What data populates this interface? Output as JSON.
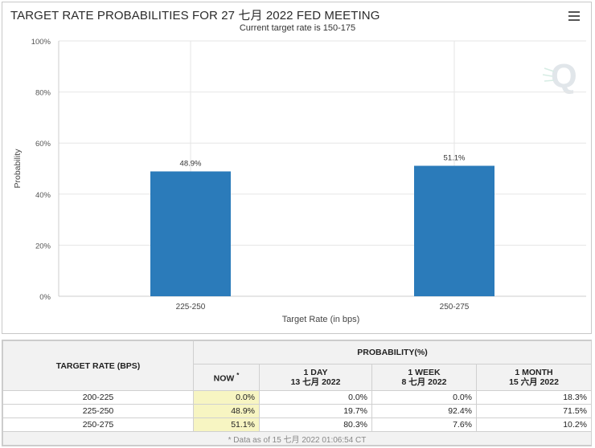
{
  "title": "TARGET RATE PROBABILITIES FOR 27 七月 2022 FED MEETING",
  "subtitle": "Current target rate is 150-175",
  "menu_icon": "hamburger-menu-icon",
  "watermark_icon": "q-logo-icon",
  "chart_data": {
    "type": "bar",
    "categories": [
      "225-250",
      "250-275"
    ],
    "values": [
      48.9,
      51.1
    ],
    "data_labels": [
      "48.9%",
      "51.1%"
    ],
    "title": "TARGET RATE PROBABILITIES FOR 27 七月 2022 FED MEETING",
    "subtitle": "Current target rate is 150-175",
    "xlabel": "Target Rate (in bps)",
    "ylabel": "Probability",
    "ylim": [
      0,
      100
    ],
    "yticks": [
      0,
      20,
      40,
      60,
      80,
      100
    ],
    "ytick_labels": [
      "0%",
      "20%",
      "40%",
      "60%",
      "80%",
      "100%"
    ],
    "grid": true,
    "bar_color": "#2b7bba"
  },
  "table": {
    "rate_header": "TARGET RATE (BPS)",
    "prob_header": "PROBABILITY(%)",
    "columns": [
      {
        "label": "NOW",
        "mark": "*",
        "date": ""
      },
      {
        "label": "1 DAY",
        "mark": "",
        "date": "13 七月 2022"
      },
      {
        "label": "1 WEEK",
        "mark": "",
        "date": "8 七月 2022"
      },
      {
        "label": "1 MONTH",
        "mark": "",
        "date": "15 六月 2022"
      }
    ],
    "rows": [
      {
        "rate": "200-225",
        "values": [
          "0.0%",
          "0.0%",
          "0.0%",
          "18.3%"
        ]
      },
      {
        "rate": "225-250",
        "values": [
          "48.9%",
          "19.7%",
          "92.4%",
          "71.5%"
        ]
      },
      {
        "rate": "250-275",
        "values": [
          "51.1%",
          "80.3%",
          "7.6%",
          "10.2%"
        ]
      }
    ],
    "footnote": "* Data as of 15 七月 2022 01:06:54 CT"
  },
  "colors": {
    "bar": "#2b7bba",
    "now_highlight": "#f7f5c2",
    "grid": "#e6e6e6"
  }
}
